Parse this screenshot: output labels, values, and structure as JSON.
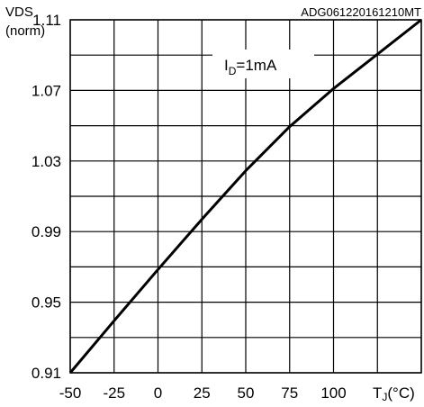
{
  "chart_data": {
    "type": "line",
    "title": "",
    "code": "ADG061220161210MT",
    "ylabel_line1": "VDS",
    "ylabel_line2": "(norm)",
    "xlabel": "T",
    "xlabel_sub": "J",
    "xlabel_unit": "(°C)",
    "annotation": "I",
    "annotation_sub": "D",
    "annotation_value": "=1mA",
    "xlim": [
      -50,
      150
    ],
    "ylim": [
      0.91,
      1.11
    ],
    "x_ticks": [
      -50,
      -25,
      0,
      25,
      50,
      75,
      100
    ],
    "x_tick_labels": [
      "-50",
      "-25",
      "0",
      "25",
      "50",
      "75",
      "100"
    ],
    "y_ticks": [
      0.91,
      0.95,
      0.99,
      1.03,
      1.07,
      1.11
    ],
    "y_tick_labels": [
      "0.91",
      "0.95",
      "0.99",
      "1.03",
      "1.07",
      "1.11"
    ],
    "grid": true,
    "series": [
      {
        "x": [
          -50,
          -25,
          0,
          25,
          50,
          75,
          100,
          125,
          150
        ],
        "y": [
          0.91,
          0.9395,
          0.9685,
          0.997,
          1.0245,
          1.0495,
          1.071,
          1.0905,
          1.11
        ]
      }
    ]
  },
  "colors": {
    "line": "#000000",
    "grid": "#000000",
    "background": "#ffffff"
  }
}
